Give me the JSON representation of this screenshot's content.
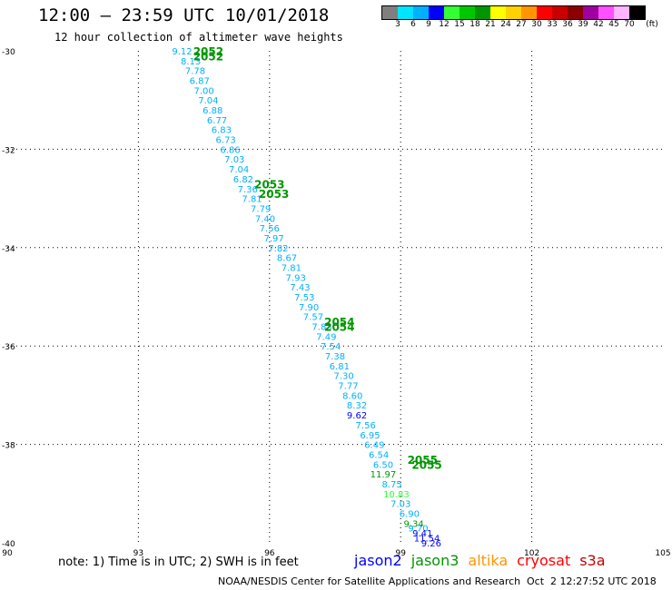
{
  "header": {
    "title": "12:00 – 23:59 UTC 10/01/2018",
    "subtitle": "12 hour collection of altimeter wave heights"
  },
  "colorbar": {
    "unit": "(ft)",
    "ticks": [
      "3",
      "6",
      "9",
      "12",
      "15",
      "18",
      "21",
      "24",
      "27",
      "30",
      "33",
      "36",
      "39",
      "42",
      "45",
      "70"
    ],
    "colors": [
      "#7f7f7f",
      "#00e5ff",
      "#00b0ff",
      "#0000ff",
      "#33ff33",
      "#00c800",
      "#009600",
      "#ffff00",
      "#ffd200",
      "#ff9600",
      "#ff0000",
      "#c80000",
      "#8c0000",
      "#a000a0",
      "#ff50ff",
      "#ffb4ff",
      "#000000"
    ]
  },
  "footer": {
    "note": "note: 1) Time is in UTC; 2) SWH is in feet",
    "credit": "NOAA/NESDIS Center for Satellite Applications and Research",
    "timestamp": "Oct  2 12:27:52 UTC 2018",
    "legend": [
      {
        "label": "jason2",
        "color": "#0000ff"
      },
      {
        "label": "jason3",
        "color": "#009600"
      },
      {
        "label": "altika",
        "color": "#ff9600"
      },
      {
        "label": "cryosat",
        "color": "#ff0000"
      },
      {
        "label": "s3a",
        "color": "#c80000"
      }
    ]
  },
  "chart_data": {
    "type": "scatter",
    "xlim": [
      90,
      105
    ],
    "ylim": [
      -40,
      -30
    ],
    "x_ticks": [
      "90",
      "93",
      "96",
      "99",
      "102",
      "105"
    ],
    "y_ticks": [
      "-30",
      "-32",
      "-34",
      "-36",
      "-38",
      "-40"
    ],
    "grid": true,
    "track_labels": [
      {
        "text": "2052",
        "lon": 94.6,
        "lat": -30.0,
        "color": "#009600"
      },
      {
        "text": "2052",
        "lon": 94.6,
        "lat": -30.1,
        "color": "#009600"
      },
      {
        "text": "2053",
        "lon": 96.0,
        "lat": -32.7,
        "color": "#009600"
      },
      {
        "text": "2053",
        "lon": 96.1,
        "lat": -32.9,
        "color": "#009600"
      },
      {
        "text": "2054",
        "lon": 97.6,
        "lat": -35.5,
        "color": "#009600"
      },
      {
        "text": "2054",
        "lon": 97.6,
        "lat": -35.6,
        "color": "#009600"
      },
      {
        "text": "2055",
        "lon": 99.5,
        "lat": -38.3,
        "color": "#009600"
      },
      {
        "text": "2055",
        "lon": 99.6,
        "lat": -38.4,
        "color": "#009600"
      }
    ],
    "points": [
      {
        "lon": 94.0,
        "lat": -30.0,
        "swh": "9.12",
        "color": "#00b0ff"
      },
      {
        "lon": 94.2,
        "lat": -30.2,
        "swh": "8.13",
        "color": "#00b0ff"
      },
      {
        "lon": 94.3,
        "lat": -30.4,
        "swh": "7.78",
        "color": "#00b0ff"
      },
      {
        "lon": 94.4,
        "lat": -30.6,
        "swh": "6.87",
        "color": "#00b0ff"
      },
      {
        "lon": 94.5,
        "lat": -30.8,
        "swh": "7.00",
        "color": "#00b0ff"
      },
      {
        "lon": 94.6,
        "lat": -31.0,
        "swh": "7.04",
        "color": "#00b0ff"
      },
      {
        "lon": 94.7,
        "lat": -31.2,
        "swh": "6.88",
        "color": "#00b0ff"
      },
      {
        "lon": 94.8,
        "lat": -31.4,
        "swh": "6.77",
        "color": "#00b0ff"
      },
      {
        "lon": 94.9,
        "lat": -31.6,
        "swh": "6.83",
        "color": "#00b0ff"
      },
      {
        "lon": 95.0,
        "lat": -31.8,
        "swh": "6.73",
        "color": "#00b0ff"
      },
      {
        "lon": 95.1,
        "lat": -32.0,
        "swh": "6.86",
        "color": "#00b0ff"
      },
      {
        "lon": 95.2,
        "lat": -32.2,
        "swh": "7.03",
        "color": "#00b0ff"
      },
      {
        "lon": 95.3,
        "lat": -32.4,
        "swh": "7.04",
        "color": "#00b0ff"
      },
      {
        "lon": 95.4,
        "lat": -32.6,
        "swh": "6.82",
        "color": "#00b0ff"
      },
      {
        "lon": 95.5,
        "lat": -32.8,
        "swh": "7.36",
        "color": "#00b0ff"
      },
      {
        "lon": 95.6,
        "lat": -33.0,
        "swh": "7.81",
        "color": "#00b0ff"
      },
      {
        "lon": 95.8,
        "lat": -33.2,
        "swh": "7.79",
        "color": "#00b0ff"
      },
      {
        "lon": 95.9,
        "lat": -33.4,
        "swh": "7.40",
        "color": "#00b0ff"
      },
      {
        "lon": 96.0,
        "lat": -33.6,
        "swh": "7.56",
        "color": "#00b0ff"
      },
      {
        "lon": 96.1,
        "lat": -33.8,
        "swh": "7.97",
        "color": "#00b0ff"
      },
      {
        "lon": 96.2,
        "lat": -34.0,
        "swh": "7.82",
        "color": "#00b0ff"
      },
      {
        "lon": 96.4,
        "lat": -34.2,
        "swh": "8.67",
        "color": "#00b0ff"
      },
      {
        "lon": 96.5,
        "lat": -34.4,
        "swh": "7.81",
        "color": "#00b0ff"
      },
      {
        "lon": 96.6,
        "lat": -34.6,
        "swh": "7.93",
        "color": "#00b0ff"
      },
      {
        "lon": 96.7,
        "lat": -34.8,
        "swh": "7.43",
        "color": "#00b0ff"
      },
      {
        "lon": 96.8,
        "lat": -35.0,
        "swh": "7.53",
        "color": "#00b0ff"
      },
      {
        "lon": 96.9,
        "lat": -35.2,
        "swh": "7.90",
        "color": "#00b0ff"
      },
      {
        "lon": 97.0,
        "lat": -35.4,
        "swh": "7.57",
        "color": "#00b0ff"
      },
      {
        "lon": 97.2,
        "lat": -35.6,
        "swh": "7.83",
        "color": "#00b0ff"
      },
      {
        "lon": 97.3,
        "lat": -35.8,
        "swh": "7.49",
        "color": "#00b0ff"
      },
      {
        "lon": 97.4,
        "lat": -36.0,
        "swh": "7.54",
        "color": "#00b0ff"
      },
      {
        "lon": 97.5,
        "lat": -36.2,
        "swh": "7.38",
        "color": "#00b0ff"
      },
      {
        "lon": 97.6,
        "lat": -36.4,
        "swh": "6.81",
        "color": "#00b0ff"
      },
      {
        "lon": 97.7,
        "lat": -36.6,
        "swh": "7.30",
        "color": "#00b0ff"
      },
      {
        "lon": 97.8,
        "lat": -36.8,
        "swh": "7.77",
        "color": "#00b0ff"
      },
      {
        "lon": 97.9,
        "lat": -37.0,
        "swh": "8.60",
        "color": "#00b0ff"
      },
      {
        "lon": 98.0,
        "lat": -37.2,
        "swh": "8.32",
        "color": "#00b0ff"
      },
      {
        "lon": 98.0,
        "lat": -37.4,
        "swh": "9.62",
        "color": "#0000ff"
      },
      {
        "lon": 98.2,
        "lat": -37.6,
        "swh": "7.56",
        "color": "#00b0ff"
      },
      {
        "lon": 98.3,
        "lat": -37.8,
        "swh": "6.95",
        "color": "#00b0ff"
      },
      {
        "lon": 98.4,
        "lat": -38.0,
        "swh": "6.49",
        "color": "#00b0ff"
      },
      {
        "lon": 98.5,
        "lat": -38.2,
        "swh": "6.54",
        "color": "#00b0ff"
      },
      {
        "lon": 98.6,
        "lat": -38.4,
        "swh": "6.50",
        "color": "#00b0ff"
      },
      {
        "lon": 98.6,
        "lat": -38.6,
        "swh": "11.97",
        "color": "#009600"
      },
      {
        "lon": 98.8,
        "lat": -38.8,
        "swh": "8.75",
        "color": "#00b0ff"
      },
      {
        "lon": 98.9,
        "lat": -39.0,
        "swh": "10.83",
        "color": "#33ff33"
      },
      {
        "lon": 99.0,
        "lat": -39.2,
        "swh": "7.03",
        "color": "#00b0ff"
      },
      {
        "lon": 99.2,
        "lat": -39.4,
        "swh": "6.90",
        "color": "#00b0ff"
      },
      {
        "lon": 99.3,
        "lat": -39.6,
        "swh": "9.34",
        "color": "#009600"
      },
      {
        "lon": 99.4,
        "lat": -39.7,
        "swh": "9.70",
        "color": "#00b0ff"
      },
      {
        "lon": 99.5,
        "lat": -39.8,
        "swh": "9.41",
        "color": "#0000ff"
      },
      {
        "lon": 99.6,
        "lat": -39.9,
        "swh": "11.54",
        "color": "#0000ff"
      },
      {
        "lon": 99.7,
        "lat": -40.0,
        "swh": "9.26",
        "color": "#0000ff"
      }
    ]
  }
}
